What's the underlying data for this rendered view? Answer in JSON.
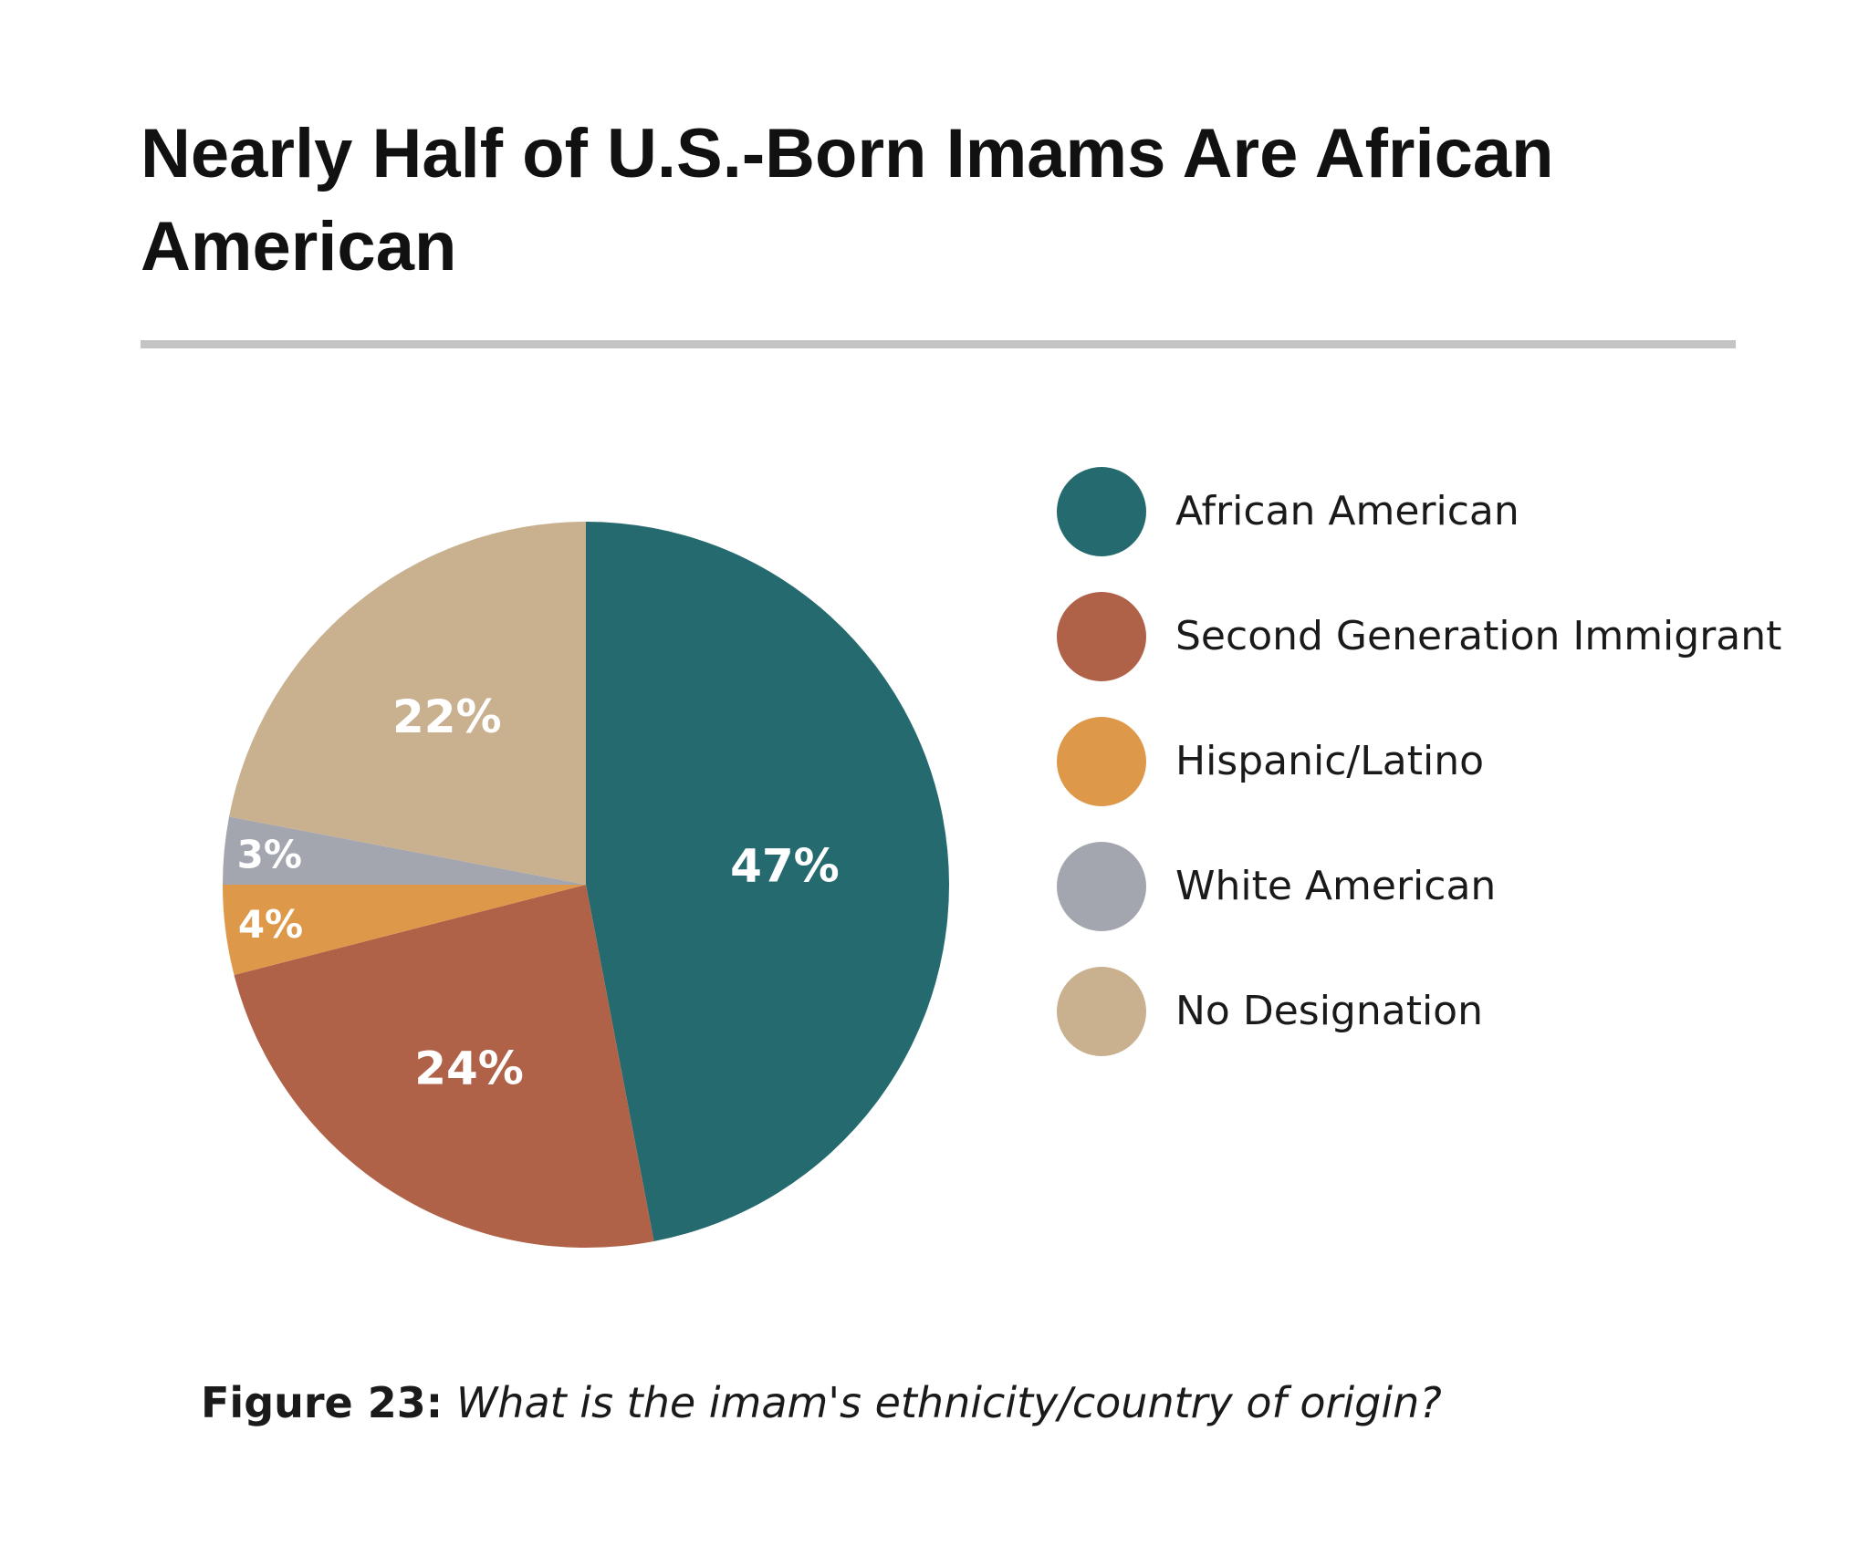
{
  "header": {
    "title": "Nearly Half of U.S.-Born Imams Are African American"
  },
  "chart_data": {
    "type": "pie",
    "categories": [
      "African American",
      "Second Generation Immigrant",
      "Hispanic/Latino",
      "White American",
      "No Designation"
    ],
    "values": [
      47,
      24,
      4,
      3,
      22
    ],
    "labels": [
      "47%",
      "24%",
      "4%",
      "3%",
      "22%"
    ],
    "colors": [
      "#256a6e",
      "#b06248",
      "#de984a",
      "#a3a6ae",
      "#c9b08f"
    ],
    "title": "Nearly Half of U.S.-Born Imams Are African American",
    "legend_position": "right"
  },
  "caption": {
    "label": "Figure 23:",
    "text": "What is the imam's ethnicity/country of origin?"
  }
}
